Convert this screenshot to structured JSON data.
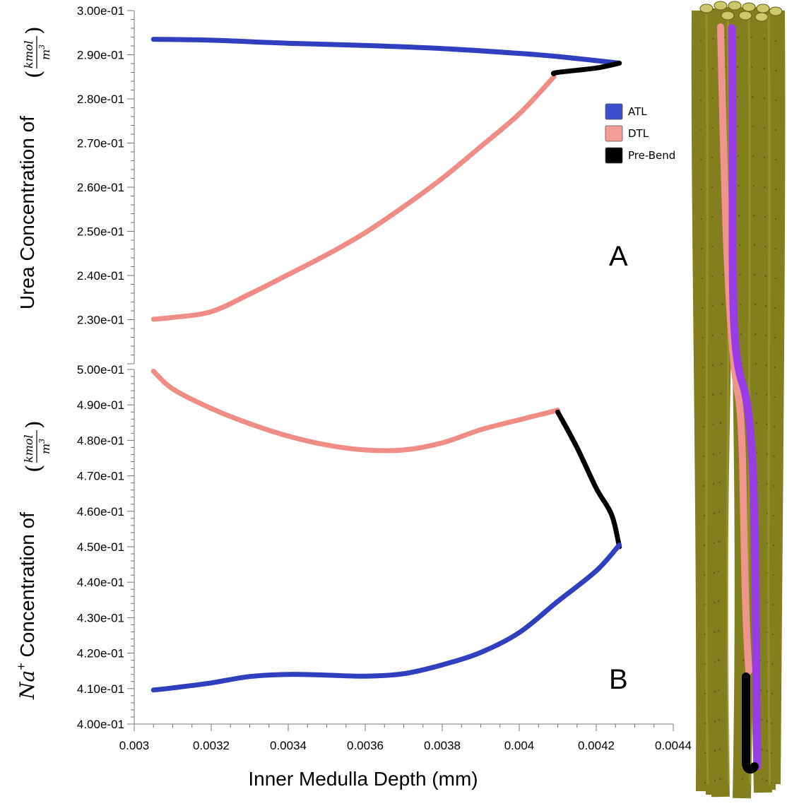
{
  "chart_data": [
    {
      "type": "line",
      "panel_label": "A",
      "ylabel": "Urea Concentration of",
      "ylabel_unit_num": "kmol",
      "ylabel_unit_den": "m",
      "ylabel_unit_exp": "3",
      "ylim": [
        0.22,
        0.3
      ],
      "yticks": [
        0.23,
        0.24,
        0.25,
        0.26,
        0.27,
        0.28,
        0.29,
        0.3
      ],
      "ytick_labels": [
        "2.30e-01",
        "2.40e-01",
        "2.50e-01",
        "2.60e-01",
        "2.70e-01",
        "2.80e-01",
        "2.90e-01",
        "3.00e-01"
      ],
      "series": [
        {
          "name": "ATL",
          "color": "#2f3fbf",
          "x": [
            0.00305,
            0.0032,
            0.0034,
            0.0036,
            0.0038,
            0.004,
            0.0041,
            0.00426
          ],
          "y": [
            0.2935,
            0.2933,
            0.2926,
            0.2921,
            0.2914,
            0.2903,
            0.2896,
            0.2881
          ]
        },
        {
          "name": "DTL",
          "color": "#f08c86",
          "x": [
            0.00305,
            0.0031,
            0.0032,
            0.0033,
            0.0034,
            0.0035,
            0.0036,
            0.0037,
            0.0038,
            0.0039,
            0.004,
            0.00409
          ],
          "y": [
            0.2301,
            0.2305,
            0.2318,
            0.2358,
            0.2402,
            0.2447,
            0.2497,
            0.2556,
            0.262,
            0.2692,
            0.2766,
            0.285
          ]
        },
        {
          "name": "Pre-Bend",
          "color": "#000000",
          "x": [
            0.00409,
            0.0041,
            0.0042,
            0.00426
          ],
          "y": [
            0.2857,
            0.286,
            0.287,
            0.2881
          ]
        }
      ]
    },
    {
      "type": "line",
      "panel_label": "B",
      "ylabel": "Concentration of",
      "ylabel_ion": "Na",
      "ylabel_ion_sup": "+",
      "ylabel_unit_num": "kmol",
      "ylabel_unit_den": "m",
      "ylabel_unit_exp": "3",
      "xlabel": "Inner Medulla Depth (mm)",
      "xlim": [
        0.003,
        0.0044
      ],
      "xticks": [
        0.003,
        0.0032,
        0.0034,
        0.0036,
        0.0038,
        0.004,
        0.0042,
        0.0044
      ],
      "xtick_labels": [
        "0.003",
        "0.0032",
        "0.0034",
        "0.0036",
        "0.0038",
        "0.004",
        "0.0042",
        "0.0044"
      ],
      "ylim": [
        0.4,
        0.5
      ],
      "yticks": [
        0.4,
        0.41,
        0.42,
        0.43,
        0.44,
        0.45,
        0.46,
        0.47,
        0.48,
        0.49,
        0.5
      ],
      "ytick_labels": [
        "4.00e-01",
        "4.10e-01",
        "4.20e-01",
        "4.30e-01",
        "4.40e-01",
        "4.50e-01",
        "4.60e-01",
        "4.70e-01",
        "4.80e-01",
        "4.90e-01",
        "5.00e-01"
      ],
      "series": [
        {
          "name": "DTL",
          "color": "#f08c86",
          "x": [
            0.00305,
            0.0031,
            0.0032,
            0.0033,
            0.0034,
            0.0035,
            0.0036,
            0.0037,
            0.0038,
            0.0039,
            0.004,
            0.0041
          ],
          "y": [
            0.4995,
            0.4945,
            0.489,
            0.4847,
            0.4812,
            0.4787,
            0.4773,
            0.4773,
            0.4793,
            0.483,
            0.4858,
            0.4885
          ]
        },
        {
          "name": "Pre-Bend",
          "color": "#000000",
          "x": [
            0.0041,
            0.00415,
            0.0042,
            0.00424,
            0.00426
          ],
          "y": [
            0.488,
            0.478,
            0.4665,
            0.459,
            0.45
          ]
        },
        {
          "name": "ATL",
          "color": "#2f3fbf",
          "x": [
            0.00305,
            0.0031,
            0.0032,
            0.0033,
            0.0034,
            0.0035,
            0.0036,
            0.0037,
            0.0038,
            0.0039,
            0.004,
            0.0041,
            0.0042,
            0.00426
          ],
          "y": [
            0.4096,
            0.4102,
            0.4116,
            0.4134,
            0.414,
            0.4138,
            0.4135,
            0.4142,
            0.4167,
            0.4202,
            0.4258,
            0.4346,
            0.4432,
            0.4505
          ]
        }
      ]
    }
  ],
  "legend": [
    {
      "label": "ATL",
      "color": "#3a4fd0"
    },
    {
      "label": "DTL",
      "color": "#f49c98"
    },
    {
      "label": "Pre-Bend",
      "color": "#000000"
    }
  ],
  "model_image": {
    "icon": "nephron-tube-bundle-3d-icon",
    "bundle_color": "#847f1e",
    "atl_color": "#9a3be8",
    "dtl_color": "#f0958c",
    "prebend_color": "#000000"
  }
}
